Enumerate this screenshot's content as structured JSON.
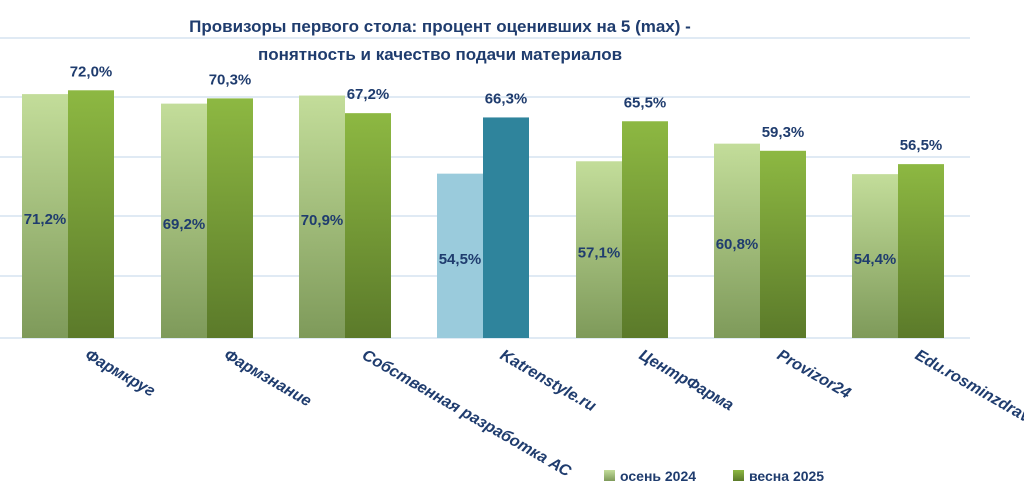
{
  "chart_data": {
    "type": "bar",
    "title_lines": [
      "Провизоры первого стола: процент оценивших на 5 (max) -",
      "понятность и качество подачи материалов"
    ],
    "categories": [
      "Фармкруг",
      "Фармзнание",
      "Собственная разработка АС",
      "Katrenstyle.ru",
      "ЦентрФарма",
      "Provizor24",
      "Edu.rosminzdrav"
    ],
    "series": [
      {
        "name": "осень 2024",
        "values": [
          71.2,
          69.2,
          70.9,
          54.5,
          57.1,
          60.8,
          54.4
        ],
        "labels": [
          "71,2%",
          "69,2%",
          "70,9%",
          "54,5%",
          "57,1%",
          "60,8%",
          "54,4%"
        ]
      },
      {
        "name": "весна 2025",
        "values": [
          72.0,
          70.3,
          67.2,
          66.3,
          65.5,
          59.3,
          56.5
        ],
        "labels": [
          "72,0%",
          "70,3%",
          "67,2%",
          "66,3%",
          "65,5%",
          "59,3%",
          "56,5%"
        ]
      }
    ],
    "highlight_category": "Katrenstyle.ru",
    "colors": {
      "series1_top": "#c3dd9a",
      "series1_bottom": "#7e9a5a",
      "series2_top": "#8db842",
      "series2_bottom": "#5b7a2a",
      "highlight1": "#9acbdc",
      "highlight2": "#2f849c",
      "grid": "#d6e4f0",
      "text": "#1f3c6e"
    },
    "grid": true,
    "legend_position": "bottom-right"
  }
}
